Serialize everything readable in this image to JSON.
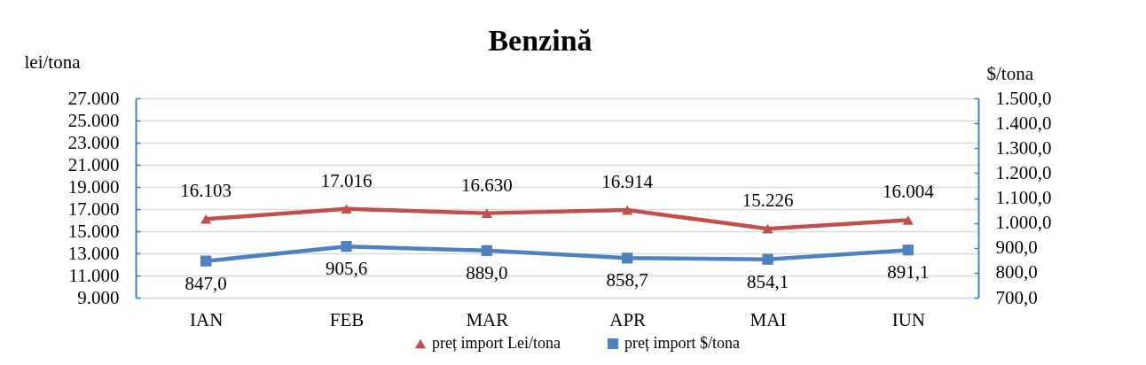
{
  "chart_data": {
    "type": "line",
    "title": "Benzină",
    "ylabel": "lei/tona",
    "y2label": "$/tona",
    "categories": [
      "IAN",
      "FEB",
      "MAR",
      "APR",
      "MAI",
      "IUN"
    ],
    "series": [
      {
        "name": "preț import Lei/tona",
        "color": "#c0504d",
        "marker": "triangle",
        "values": [
          16103,
          17016,
          16630,
          16914,
          15226,
          16004
        ],
        "value_labels": [
          "16.103",
          "17.016",
          "16.630",
          "16.914",
          "15.226",
          "16.004"
        ]
      },
      {
        "name": "preț import $/tona",
        "color": "#4f81bd",
        "marker": "square",
        "axis": "y2",
        "values": [
          847.0,
          905.6,
          889.0,
          858.7,
          854.1,
          891.1
        ],
        "value_labels": [
          "847,0",
          "905,6",
          "889,0",
          "858,7",
          "854,1",
          "891,1"
        ]
      }
    ],
    "ylim": [
      9000,
      27000
    ],
    "yticks": [
      {
        "value": 9000,
        "label": "9.000"
      },
      {
        "value": 11000,
        "label": "11.000"
      },
      {
        "value": 13000,
        "label": "13.000"
      },
      {
        "value": 15000,
        "label": "15.000"
      },
      {
        "value": 17000,
        "label": "17.000"
      },
      {
        "value": 19000,
        "label": "19.000"
      },
      {
        "value": 21000,
        "label": "21.000"
      },
      {
        "value": 23000,
        "label": "23.000"
      },
      {
        "value": 25000,
        "label": "25.000"
      },
      {
        "value": 27000,
        "label": "27.000"
      }
    ],
    "y2lim": [
      700,
      1500
    ],
    "y2ticks": [
      {
        "value": 700,
        "label": "700,0"
      },
      {
        "value": 800,
        "label": "800,0"
      },
      {
        "value": 900,
        "label": "900,0"
      },
      {
        "value": 1000,
        "label": "1.000,0"
      },
      {
        "value": 1100,
        "label": "1.100,0"
      },
      {
        "value": 1200,
        "label": "1.200,0"
      },
      {
        "value": 1300,
        "label": "1.300,0"
      },
      {
        "value": 1400,
        "label": "1.400,0"
      },
      {
        "value": 1500,
        "label": "1.500,0"
      }
    ],
    "grid": "y",
    "legend": "bottom"
  }
}
